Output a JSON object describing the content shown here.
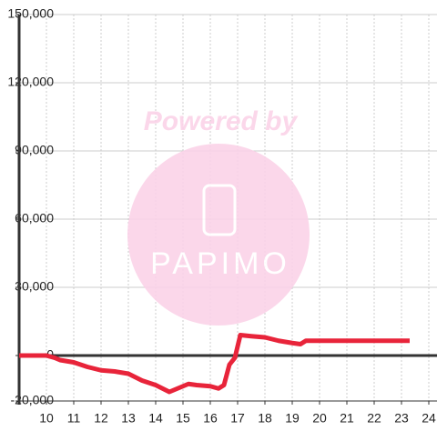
{
  "chart_data": {
    "type": "line",
    "watermark": [
      "Powered by",
      "PAPIMO"
    ],
    "x": [
      9,
      10,
      10.3,
      10.5,
      11,
      11.5,
      12,
      12.5,
      13,
      13.5,
      14,
      14.5,
      14.8,
      15.2,
      15.5,
      16,
      16.3,
      16.5,
      16.7,
      16.9,
      17.1,
      17.5,
      18,
      18.5,
      19,
      19.3,
      19.5,
      20,
      23.3
    ],
    "series": [
      {
        "color": "#e8243a",
        "values": [
          0,
          0,
          -1000,
          -2000,
          -3000,
          -5000,
          -6500,
          -7000,
          -8000,
          -11000,
          -13000,
          -16000,
          -14500,
          -12500,
          -13000,
          -13500,
          -14500,
          -13000,
          -4000,
          -1000,
          9000,
          8500,
          8000,
          6500,
          5500,
          5000,
          6500,
          6500,
          6500
        ]
      }
    ],
    "xlim": [
      9,
      24.3
    ],
    "xticks": [
      10,
      11,
      12,
      13,
      14,
      15,
      16,
      17,
      18,
      19,
      20,
      21,
      22,
      23,
      24
    ],
    "ylim": [
      -20000,
      150000
    ],
    "yticks": [
      {
        "value": -20000,
        "label": "-20,000"
      },
      0,
      {
        "value": 30000,
        "label": "30,000"
      },
      {
        "value": 60000,
        "label": "60,000"
      },
      {
        "value": 90000,
        "label": "90,000"
      },
      {
        "value": 120000,
        "label": "120,000"
      },
      {
        "value": 150000,
        "label": "150,000"
      }
    ],
    "grid": true
  }
}
